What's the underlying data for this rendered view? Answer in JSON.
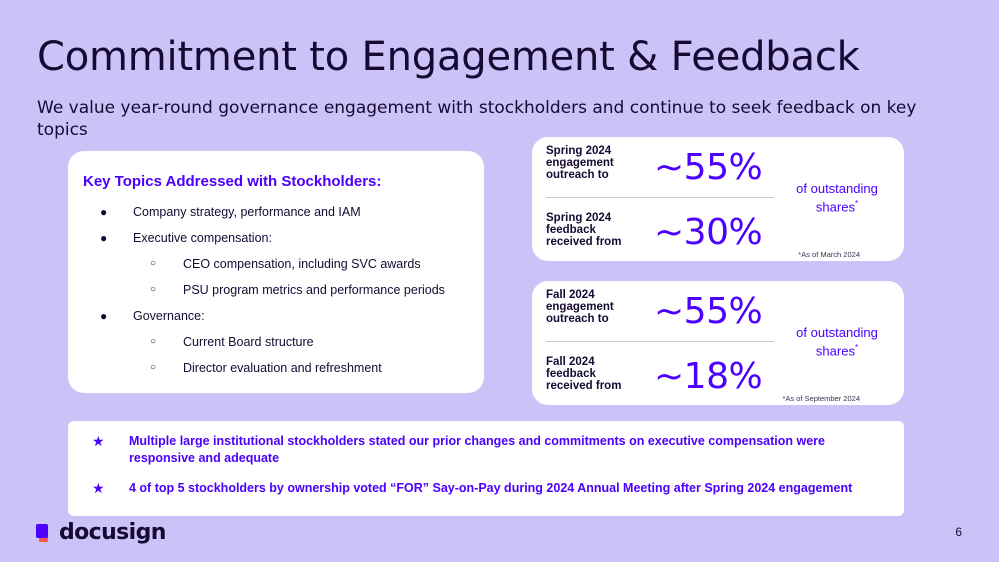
{
  "slide": {
    "title": "Commitment to Engagement & Feedback",
    "subtitle": "We value year-round governance engagement with stockholders and continue to seek feedback on key topics",
    "page_number": "6"
  },
  "topics": {
    "heading": "Key Topics Addressed with Stockholders:",
    "bullet_glyph": "●",
    "sub_bullet_glyph": "○",
    "items": [
      {
        "text": "Company strategy, performance and IAM",
        "level": 1
      },
      {
        "text": "Executive compensation:",
        "level": 1
      },
      {
        "text": "CEO compensation, including SVC awards",
        "level": 2
      },
      {
        "text": "PSU program metrics and performance periods",
        "level": 2
      },
      {
        "text": "Governance:",
        "level": 1
      },
      {
        "text": "Current Board structure",
        "level": 2
      },
      {
        "text": "Director evaluation and refreshment",
        "level": 2
      }
    ]
  },
  "spring": {
    "outreach_label": "Spring 2024 engagement outreach to",
    "outreach_value": "~55%",
    "feedback_label": "Spring 2024 feedback received from",
    "feedback_value": "~30%",
    "unit": "of outstanding shares",
    "unit_marker": "*",
    "note": "*As of March 2024"
  },
  "fall": {
    "outreach_label": "Fall 2024 engagement outreach to",
    "outreach_value": "~55%",
    "feedback_label": "Fall 2024 feedback received from",
    "feedback_value": "~18%",
    "unit": "of outstanding shares",
    "unit_marker": "*",
    "note": "*As of September 2024"
  },
  "summary": {
    "star_glyph": "★",
    "items": [
      "Multiple large institutional stockholders stated our prior changes and commitments on executive compensation were responsive and adequate",
      "4 of top 5 stockholders by ownership voted “FOR” Say-on-Pay during 2024 Annual Meeting after Spring 2024 engagement"
    ]
  },
  "brand": {
    "logo_text": "docusign",
    "logo_icon": "docusign-logo-icon",
    "accent_color": "#4c00ff",
    "logo_color_primary": "#4c00ff",
    "logo_color_secondary": "#ff5252",
    "background_color": "#cbc2f7"
  }
}
